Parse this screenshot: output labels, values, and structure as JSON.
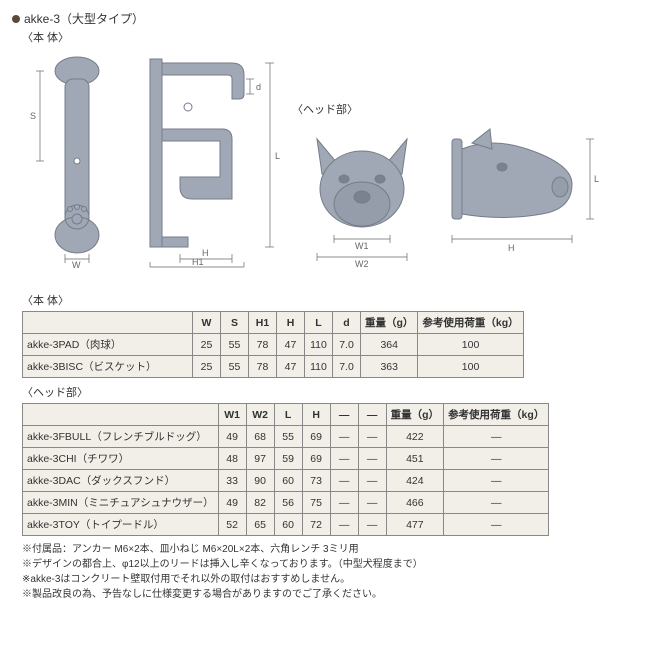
{
  "header": {
    "title": "akke-3（大型タイプ）",
    "body_label": "〈本 体〉",
    "head_label": "〈ヘッド部〉"
  },
  "diagram_labels": {
    "W": "W",
    "S": "S",
    "H1": "H1",
    "H": "H",
    "L": "L",
    "d": "d",
    "W1": "W1",
    "W2": "W2"
  },
  "diagram_style": {
    "shape_fill": "#a1a8b5",
    "shape_stroke": "#757c8a",
    "dim_line": "#666666",
    "bg": "#ffffff"
  },
  "sections": {
    "body_section": "〈本 体〉",
    "head_section": "〈ヘッド部〉"
  },
  "body_table": {
    "headers": [
      "",
      "W",
      "S",
      "H1",
      "H",
      "L",
      "d",
      "重量（g）",
      "参考使用荷重（kg）"
    ],
    "rows": [
      {
        "name": "akke-3PAD（肉球）",
        "W": "25",
        "S": "55",
        "H1": "78",
        "H": "47",
        "L": "110",
        "d": "7.0",
        "weight": "364",
        "load": "100"
      },
      {
        "name": "akke-3BISC（ビスケット）",
        "W": "25",
        "S": "55",
        "H1": "78",
        "H": "47",
        "L": "110",
        "d": "7.0",
        "weight": "363",
        "load": "100"
      }
    ]
  },
  "head_table": {
    "headers": [
      "",
      "W1",
      "W2",
      "L",
      "H",
      "—",
      "—",
      "重量（g）",
      "参考使用荷重（kg）"
    ],
    "rows": [
      {
        "name": "akke-3FBULL（フレンチブルドッグ）",
        "W1": "49",
        "W2": "68",
        "L": "55",
        "H": "69",
        "c5": "—",
        "c6": "—",
        "weight": "422",
        "load": "—"
      },
      {
        "name": "akke-3CHI（チワワ）",
        "W1": "48",
        "W2": "97",
        "L": "59",
        "H": "69",
        "c5": "—",
        "c6": "—",
        "weight": "451",
        "load": "—"
      },
      {
        "name": "akke-3DAC（ダックスフンド）",
        "W1": "33",
        "W2": "90",
        "L": "60",
        "H": "73",
        "c5": "—",
        "c6": "—",
        "weight": "424",
        "load": "—"
      },
      {
        "name": "akke-3MIN（ミニチュアシュナウザー）",
        "W1": "49",
        "W2": "82",
        "L": "56",
        "H": "75",
        "c5": "—",
        "c6": "—",
        "weight": "466",
        "load": "—"
      },
      {
        "name": "akke-3TOY（トイプードル）",
        "W1": "52",
        "W2": "65",
        "L": "60",
        "H": "72",
        "c5": "—",
        "c6": "—",
        "weight": "477",
        "load": "—"
      }
    ]
  },
  "notes": [
    "※付属品：アンカー M6×2本、皿小ねじ M6×20L×2本、六角レンチ 3ミリ用",
    "※デザインの都合上、φ12以上のリードは挿入し辛くなっております。（中型犬程度まで）",
    "※akke-3はコンクリート壁取付用でそれ以外の取付はおすすめしません。",
    "※製品改良の為、予告なしに仕様変更する場合がありますのでご了承ください。"
  ]
}
